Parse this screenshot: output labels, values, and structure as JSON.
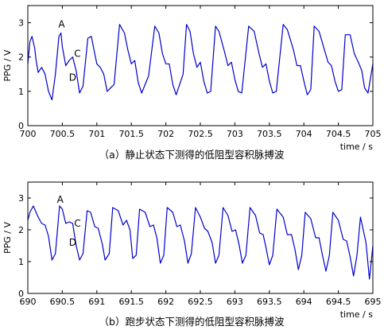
{
  "chart_data": [
    {
      "type": "line",
      "caption": "（a）静止状态下测得的低阻型容积脉搏波",
      "ylabel": "PPG / V",
      "xlabel": "time / s",
      "xlim": [
        700,
        705
      ],
      "ylim": [
        0,
        3.5
      ],
      "xticks": [
        "700",
        "700.5",
        "701",
        "701.5",
        "702",
        "702.5",
        "703",
        "703.5",
        "704",
        "704.5",
        "705"
      ],
      "yticks": [
        "0",
        "1",
        "2",
        "3"
      ],
      "annotations": [
        {
          "text": "A",
          "x": 700.49,
          "y": 2.95
        },
        {
          "text": "C",
          "x": 700.72,
          "y": 2.1
        },
        {
          "text": "D",
          "x": 700.65,
          "y": 1.4
        }
      ],
      "x": [
        700.0,
        700.03,
        700.06,
        700.1,
        700.12,
        700.15,
        700.2,
        700.25,
        700.3,
        700.35,
        700.4,
        700.45,
        700.48,
        700.5,
        700.55,
        700.6,
        700.65,
        700.7,
        700.75,
        700.8,
        700.87,
        700.92,
        700.96,
        701.0,
        701.05,
        701.1,
        701.15,
        701.25,
        701.33,
        701.4,
        701.45,
        701.5,
        701.55,
        701.6,
        701.65,
        701.75,
        701.84,
        701.9,
        701.95,
        702.0,
        702.05,
        702.1,
        702.15,
        702.25,
        702.3,
        702.35,
        702.4,
        702.45,
        702.5,
        702.55,
        702.6,
        702.65,
        702.72,
        702.77,
        702.85,
        702.9,
        702.95,
        703.0,
        703.05,
        703.1,
        703.2,
        703.28,
        703.35,
        703.4,
        703.45,
        703.5,
        703.55,
        703.6,
        703.7,
        703.76,
        703.85,
        703.9,
        703.95,
        704.0,
        704.05,
        704.1,
        704.15,
        704.22,
        704.3,
        704.35,
        704.4,
        704.45,
        704.5,
        704.55,
        704.6,
        704.67,
        704.73,
        704.8,
        704.84,
        704.88,
        704.93,
        705.0
      ],
      "y": [
        1.8,
        2.45,
        2.6,
        2.25,
        1.9,
        1.55,
        1.7,
        1.5,
        1.0,
        0.75,
        1.5,
        2.6,
        2.7,
        2.3,
        1.75,
        1.9,
        2.0,
        1.6,
        0.95,
        1.15,
        2.55,
        2.6,
        2.2,
        1.8,
        1.7,
        1.5,
        1.0,
        1.2,
        2.95,
        2.7,
        2.2,
        1.8,
        1.9,
        1.25,
        0.95,
        1.45,
        2.9,
        2.7,
        2.1,
        1.8,
        1.8,
        1.2,
        0.9,
        1.5,
        2.95,
        2.75,
        2.1,
        1.7,
        1.85,
        1.3,
        0.95,
        1.0,
        2.9,
        2.75,
        2.15,
        1.75,
        1.85,
        1.35,
        1.0,
        0.95,
        2.9,
        2.75,
        2.1,
        1.7,
        1.8,
        1.3,
        0.95,
        1.0,
        2.95,
        2.8,
        2.2,
        1.75,
        1.75,
        1.3,
        0.9,
        1.05,
        2.9,
        2.75,
        2.2,
        1.85,
        1.75,
        1.3,
        1.0,
        1.05,
        2.65,
        2.65,
        2.1,
        1.8,
        1.6,
        1.1,
        0.95,
        1.8
      ]
    },
    {
      "type": "line",
      "caption": "（b）跑步状态下测得的低阻型容积脉搏波",
      "ylabel": "PPG / V",
      "xlabel": "time / s",
      "xlim": [
        690,
        695
      ],
      "ylim": [
        0,
        3.5
      ],
      "xticks": [
        "690",
        "690.5",
        "691",
        "691.5",
        "692",
        "692.5",
        "693",
        "693.5",
        "694",
        "694.5",
        "695"
      ],
      "yticks": [
        "0",
        "1",
        "2",
        "3"
      ],
      "annotations": [
        {
          "text": "A",
          "x": 690.47,
          "y": 2.95
        },
        {
          "text": "C",
          "x": 690.72,
          "y": 2.2
        },
        {
          "text": "D",
          "x": 690.65,
          "y": 1.6
        }
      ],
      "x": [
        690.0,
        690.03,
        690.08,
        690.15,
        690.2,
        690.25,
        690.3,
        690.35,
        690.4,
        690.46,
        690.5,
        690.55,
        690.6,
        690.65,
        690.7,
        690.75,
        690.8,
        690.86,
        690.91,
        690.97,
        691.02,
        691.08,
        691.12,
        691.18,
        691.23,
        691.31,
        691.38,
        691.43,
        691.48,
        691.52,
        691.57,
        691.62,
        691.7,
        691.77,
        691.82,
        691.87,
        691.92,
        691.97,
        692.02,
        692.1,
        692.16,
        692.21,
        692.27,
        692.32,
        692.37,
        692.43,
        692.5,
        692.56,
        692.61,
        692.67,
        692.72,
        692.77,
        692.83,
        692.9,
        692.96,
        693.01,
        693.06,
        693.11,
        693.16,
        693.22,
        693.3,
        693.36,
        693.41,
        693.45,
        693.5,
        693.55,
        693.61,
        693.7,
        693.76,
        693.82,
        693.87,
        693.92,
        693.97,
        694.02,
        694.1,
        694.17,
        694.22,
        694.27,
        694.32,
        694.37,
        694.42,
        694.5,
        694.57,
        694.62,
        694.67,
        694.72,
        694.77,
        694.82,
        694.9,
        694.95,
        695.0
      ],
      "y": [
        2.3,
        2.55,
        2.75,
        2.4,
        2.2,
        2.15,
        1.8,
        1.05,
        1.25,
        2.75,
        2.65,
        2.2,
        2.25,
        2.2,
        1.5,
        1.05,
        1.25,
        2.6,
        2.55,
        2.1,
        2.05,
        1.55,
        1.05,
        1.25,
        2.7,
        2.6,
        2.15,
        2.3,
        2.0,
        1.1,
        1.2,
        2.65,
        2.55,
        2.1,
        2.15,
        1.75,
        0.95,
        1.2,
        2.7,
        2.55,
        2.1,
        2.15,
        1.65,
        0.95,
        1.25,
        2.7,
        2.4,
        2.05,
        1.95,
        1.6,
        0.95,
        1.2,
        2.7,
        2.45,
        1.95,
        2.0,
        1.55,
        0.95,
        1.2,
        2.7,
        2.45,
        1.9,
        1.85,
        1.45,
        0.9,
        1.2,
        2.65,
        2.4,
        1.85,
        1.85,
        1.4,
        0.75,
        1.2,
        2.55,
        2.35,
        1.75,
        1.75,
        1.2,
        0.7,
        1.2,
        2.55,
        2.3,
        1.7,
        1.65,
        1.15,
        0.55,
        1.2,
        2.4,
        1.6,
        0.45,
        1.5
      ]
    }
  ]
}
